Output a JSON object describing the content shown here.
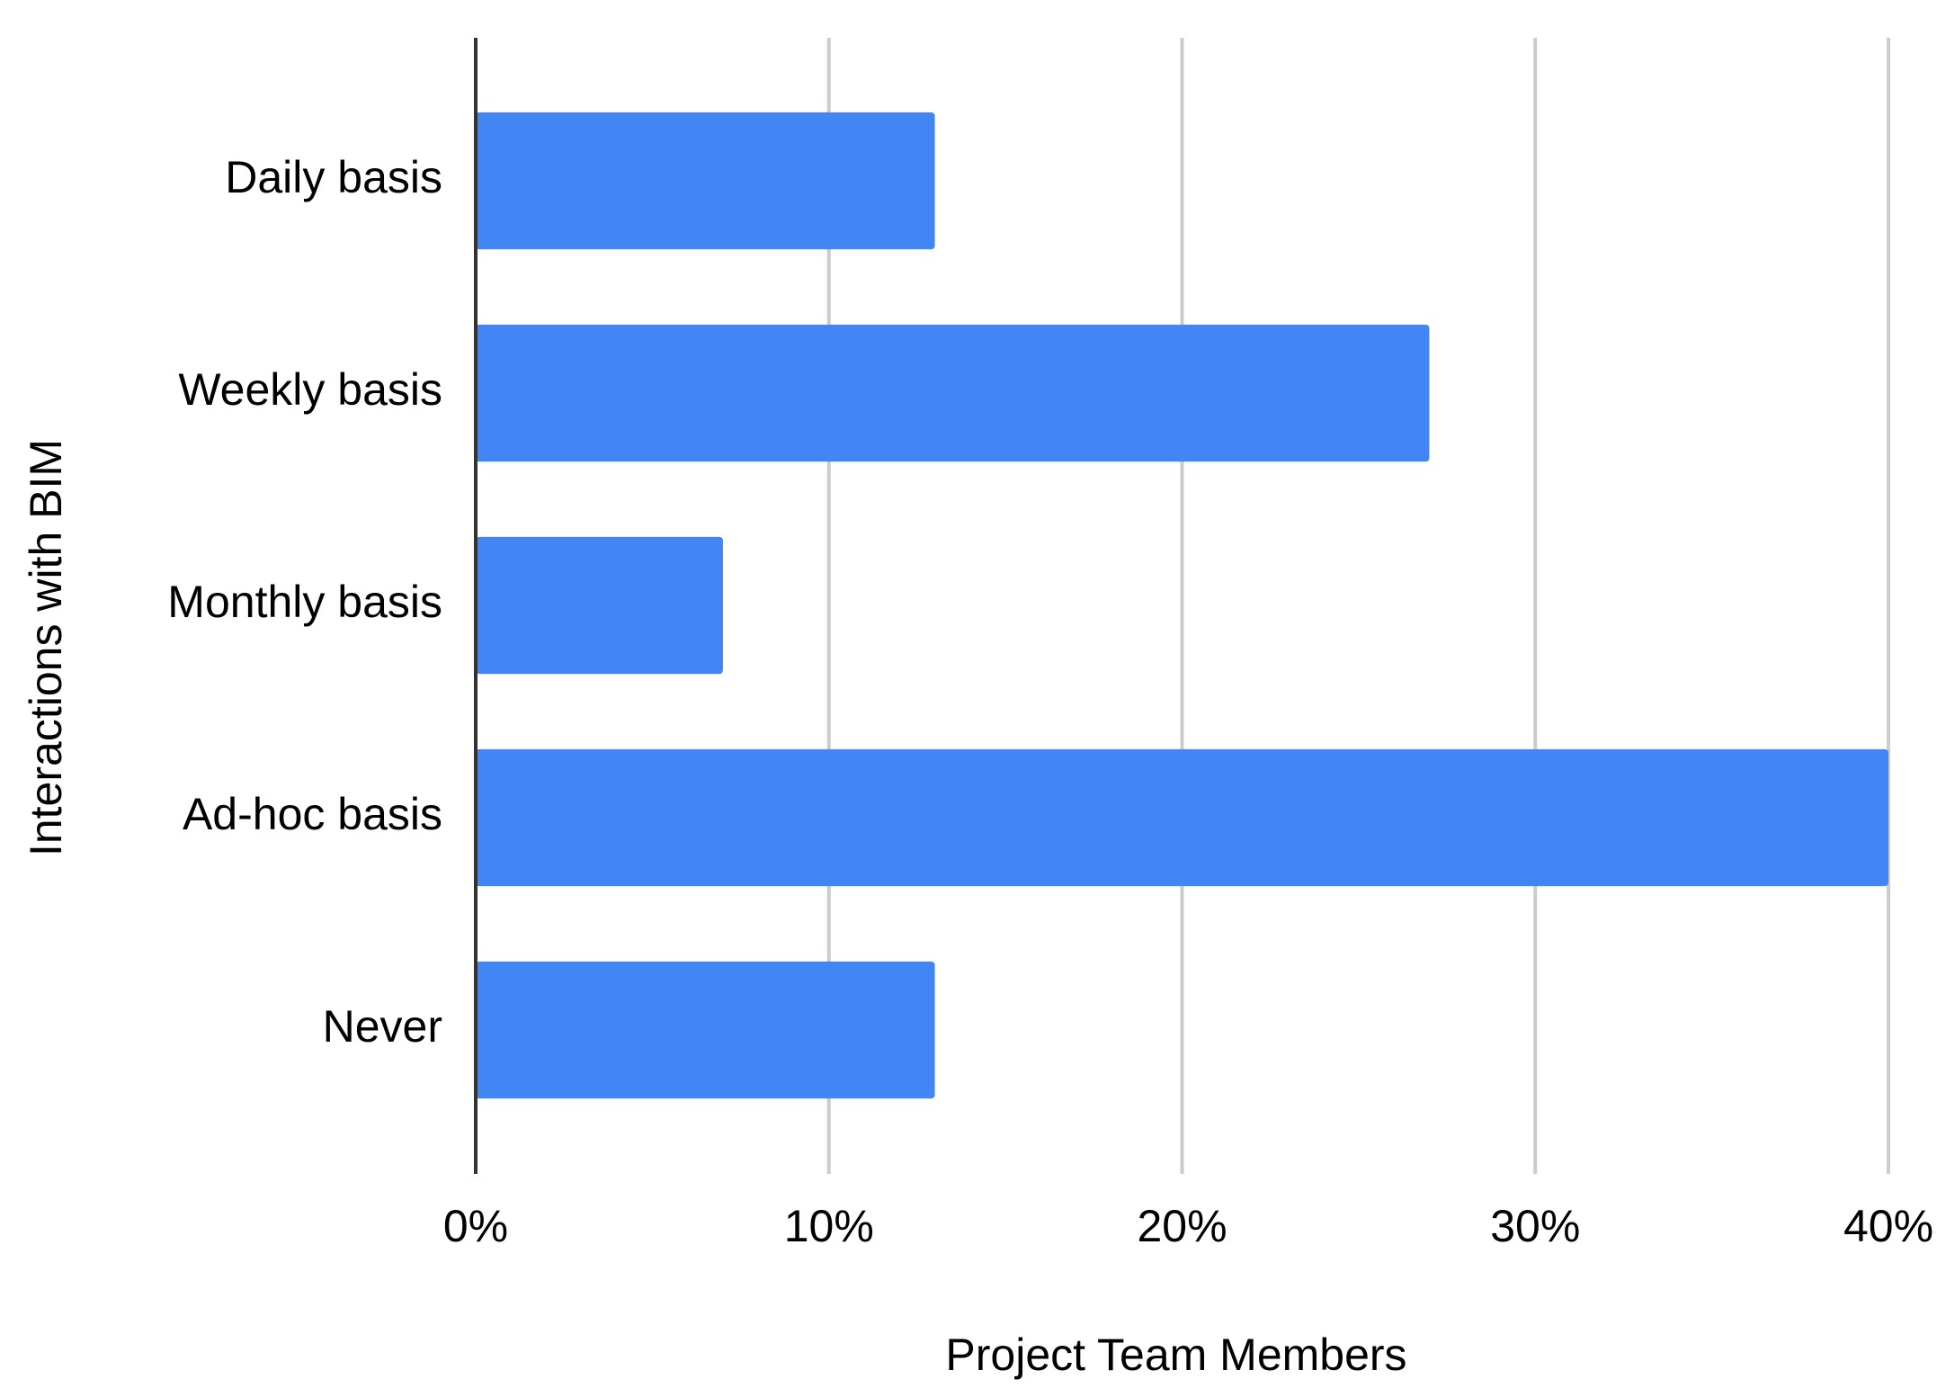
{
  "chart_data": {
    "type": "bar",
    "orientation": "horizontal",
    "x_axis_label": "Project Team Members",
    "y_axis_label": "Interactions with BIM",
    "categories": [
      "Daily basis",
      "Weekly basis",
      "Monthly basis",
      "Ad-hoc basis",
      "Never"
    ],
    "values": [
      13,
      27,
      7,
      40,
      13
    ],
    "color": "#4285f4",
    "xlim": [
      0,
      40
    ],
    "xticks": [
      {
        "value": 0,
        "label": "0%"
      },
      {
        "value": 10,
        "label": "10%"
      },
      {
        "value": 20,
        "label": "20%"
      },
      {
        "value": 30,
        "label": "30%"
      },
      {
        "value": 40,
        "label": "40%"
      }
    ],
    "grid": true
  }
}
